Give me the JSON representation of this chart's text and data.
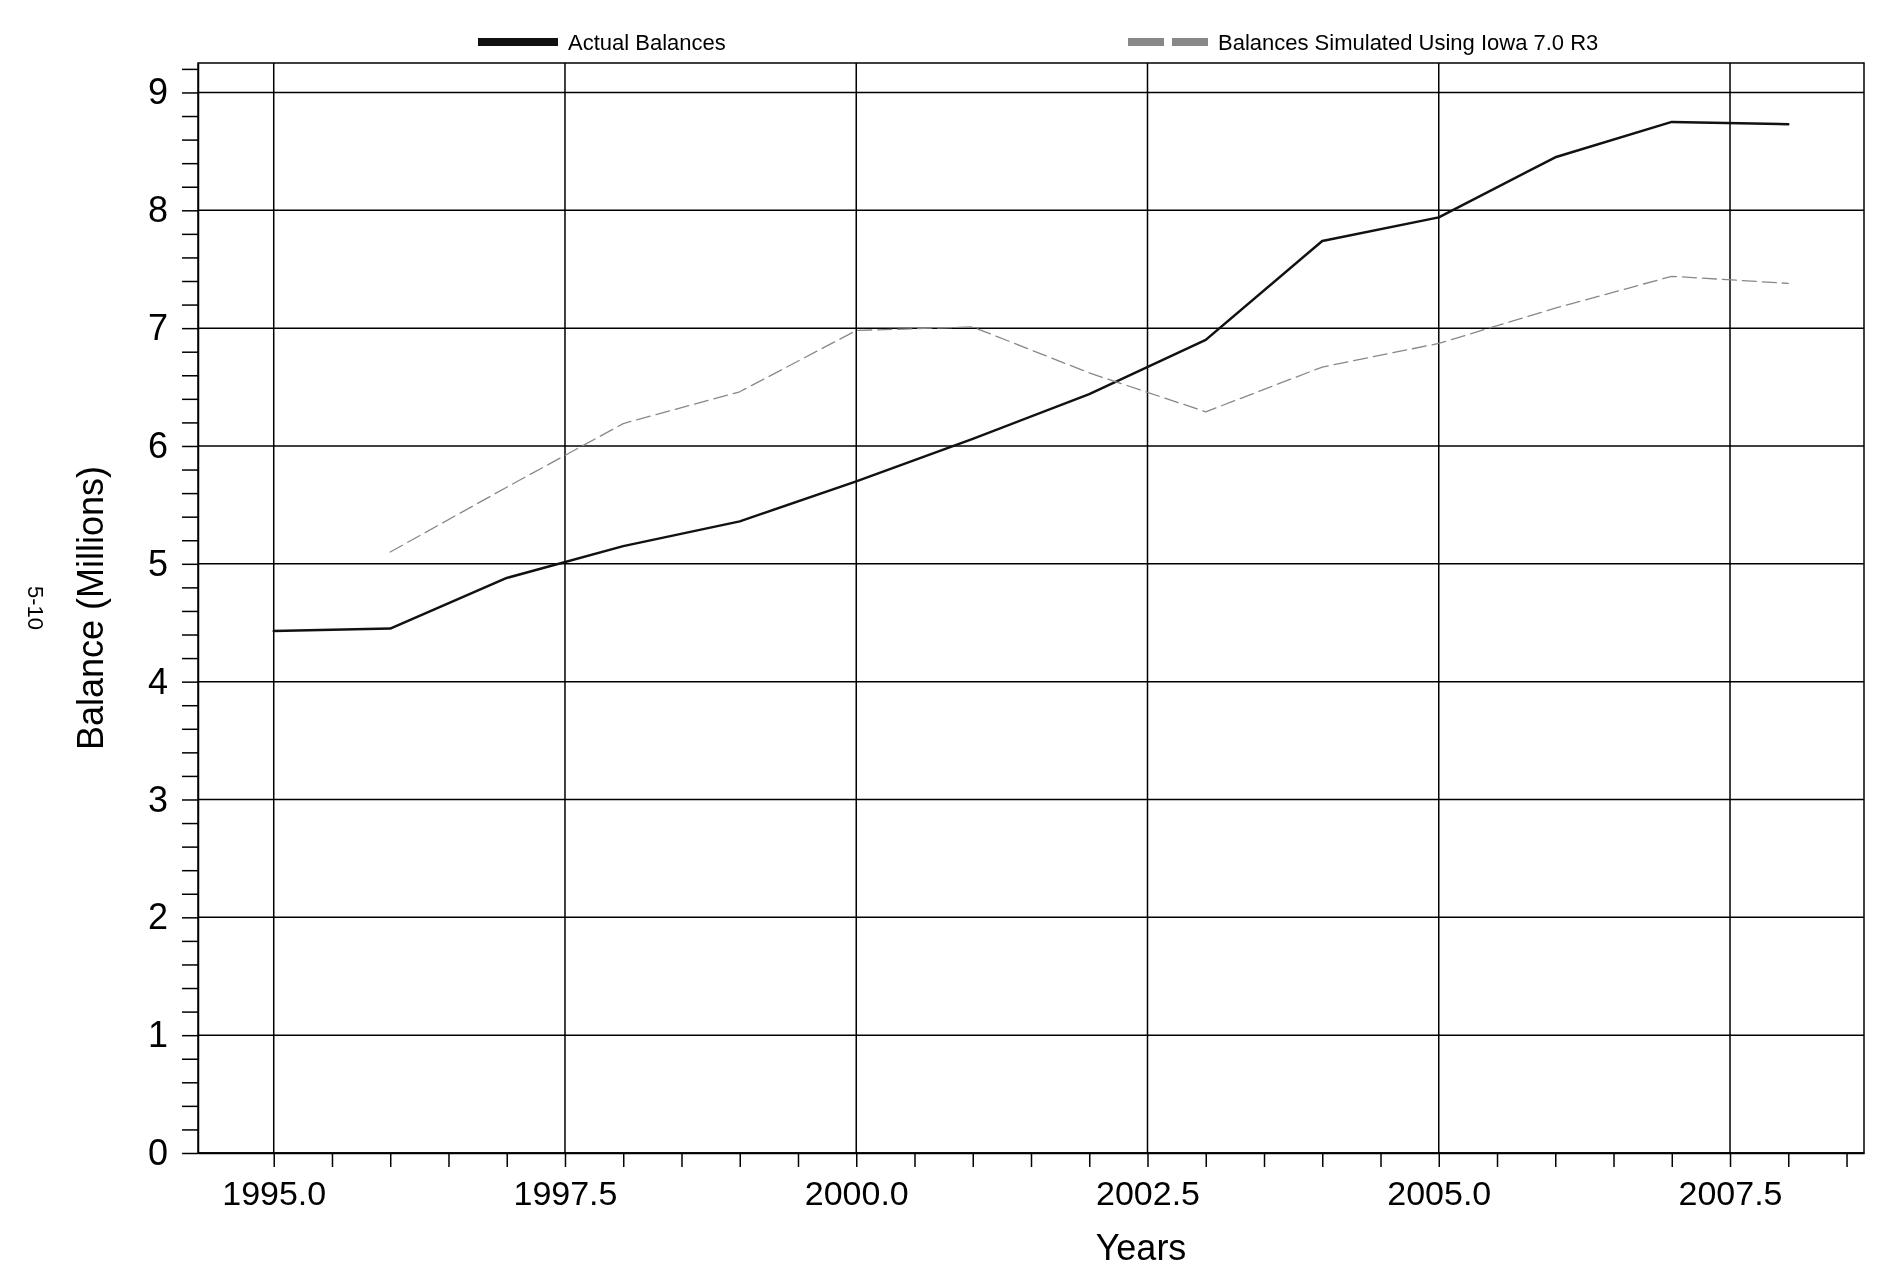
{
  "chart_data": {
    "type": "line",
    "xlabel": "Years",
    "ylabel": "Balance (Millions)",
    "x": [
      1995,
      1996,
      1997,
      1998,
      1999,
      2000,
      2001,
      2002,
      2003,
      2004,
      2005,
      2006,
      2007,
      2008
    ],
    "series": [
      {
        "name": "Actual Balances",
        "color": "#111111",
        "line_style": "solid",
        "values": [
          4.43,
          4.45,
          4.88,
          5.15,
          5.36,
          5.7,
          6.06,
          6.44,
          6.9,
          7.74,
          7.94,
          8.45,
          8.75,
          8.73
        ]
      },
      {
        "name": "Balances Simulated Using Iowa 7.0 R3",
        "color": "#888888",
        "line_style": "dashed",
        "values": [
          null,
          5.1,
          5.65,
          6.19,
          6.46,
          6.98,
          7.01,
          6.62,
          6.29,
          6.67,
          6.87,
          7.17,
          7.44,
          7.38
        ]
      }
    ],
    "xlim": [
      1994.35,
      2008.65
    ],
    "xticks": [
      {
        "value": 1995,
        "label": "1995.0"
      },
      {
        "value": 1995.5,
        "label": null
      },
      {
        "value": 1996,
        "label": null
      },
      {
        "value": 1996.5,
        "label": null
      },
      {
        "value": 1997,
        "label": null
      },
      {
        "value": 1997.5,
        "label": "1997.5"
      },
      {
        "value": 1998,
        "label": null
      },
      {
        "value": 1998.5,
        "label": null
      },
      {
        "value": 1999,
        "label": null
      },
      {
        "value": 1999.5,
        "label": null
      },
      {
        "value": 2000,
        "label": "2000.0"
      },
      {
        "value": 2000.5,
        "label": null
      },
      {
        "value": 2001,
        "label": null
      },
      {
        "value": 2001.5,
        "label": null
      },
      {
        "value": 2002,
        "label": null
      },
      {
        "value": 2002.5,
        "label": "2002.5"
      },
      {
        "value": 2003,
        "label": null
      },
      {
        "value": 2003.5,
        "label": null
      },
      {
        "value": 2004,
        "label": null
      },
      {
        "value": 2004.5,
        "label": null
      },
      {
        "value": 2005,
        "label": "2005.0"
      },
      {
        "value": 2005.5,
        "label": null
      },
      {
        "value": 2006,
        "label": null
      },
      {
        "value": 2006.5,
        "label": null
      },
      {
        "value": 2007,
        "label": null
      },
      {
        "value": 2007.5,
        "label": "2007.5"
      },
      {
        "value": 2008,
        "label": null
      },
      {
        "value": 2008.5,
        "label": null
      }
    ],
    "ylim": [
      0,
      9.25
    ],
    "yticks": [
      0,
      {
        "value": 0.2,
        "label": null
      },
      {
        "value": 0.4,
        "label": null
      },
      {
        "value": 0.6,
        "label": null
      },
      {
        "value": 0.8,
        "label": null
      },
      1,
      {
        "value": 1.2,
        "label": null
      },
      {
        "value": 1.4,
        "label": null
      },
      {
        "value": 1.6,
        "label": null
      },
      {
        "value": 1.8,
        "label": null
      },
      2,
      {
        "value": 2.2,
        "label": null
      },
      {
        "value": 2.4,
        "label": null
      },
      {
        "value": 2.6,
        "label": null
      },
      {
        "value": 2.8,
        "label": null
      },
      3,
      {
        "value": 3.2,
        "label": null
      },
      {
        "value": 3.4,
        "label": null
      },
      {
        "value": 3.6,
        "label": null
      },
      {
        "value": 3.8,
        "label": null
      },
      4,
      {
        "value": 4.2,
        "label": null
      },
      {
        "value": 4.4,
        "label": null
      },
      {
        "value": 4.6,
        "label": null
      },
      {
        "value": 4.8,
        "label": null
      },
      5,
      {
        "value": 5.2,
        "label": null
      },
      {
        "value": 5.4,
        "label": null
      },
      {
        "value": 5.6,
        "label": null
      },
      {
        "value": 5.8,
        "label": null
      },
      6,
      {
        "value": 6.2,
        "label": null
      },
      {
        "value": 6.4,
        "label": null
      },
      {
        "value": 6.6,
        "label": null
      },
      {
        "value": 6.8,
        "label": null
      },
      7,
      {
        "value": 7.2,
        "label": null
      },
      {
        "value": 7.4,
        "label": null
      },
      {
        "value": 7.6,
        "label": null
      },
      {
        "value": 7.8,
        "label": null
      },
      8,
      {
        "value": 8.2,
        "label": null
      },
      {
        "value": 8.4,
        "label": null
      },
      {
        "value": 8.6,
        "label": null
      },
      {
        "value": 8.8,
        "label": null
      },
      9,
      {
        "value": 9.2,
        "label": null
      }
    ],
    "grid": true,
    "legend": "top",
    "marker": "none",
    "annotations": [
      "5-10"
    ]
  }
}
